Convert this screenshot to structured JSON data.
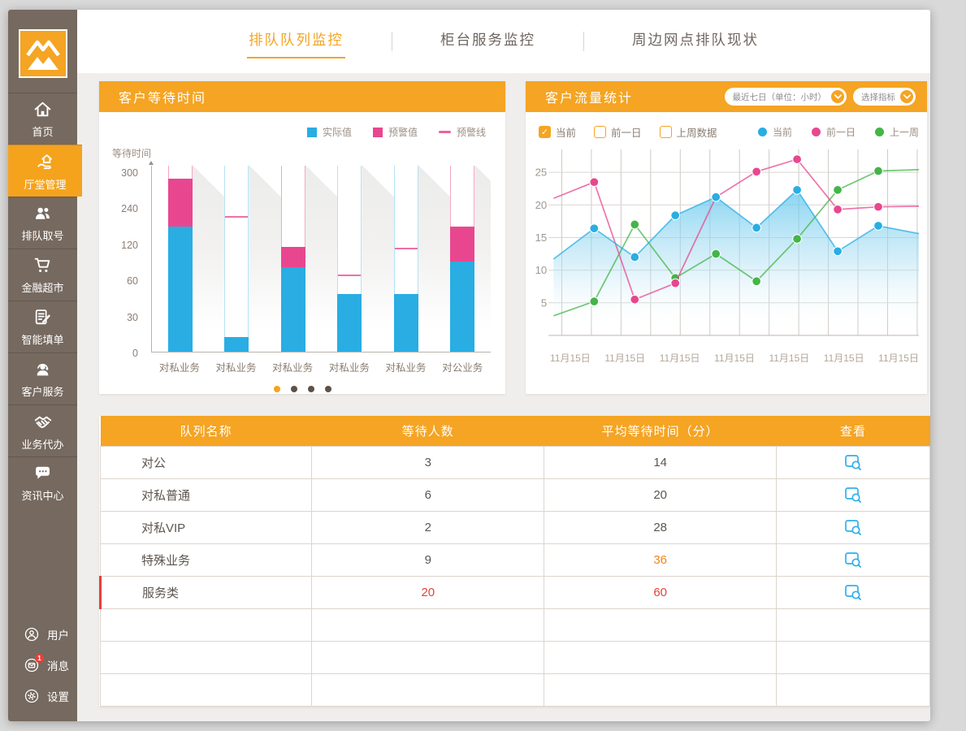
{
  "colors": {
    "accent_orange": "#F5A423",
    "sidebar_brown": "#76695F",
    "blue": "#29ADE3",
    "pink": "#E8478F",
    "green": "#44B549",
    "red": "#E6403A",
    "warn_orange": "#F08519"
  },
  "sidebar": {
    "items": [
      {
        "label": "首页",
        "active": false
      },
      {
        "label": "厅堂管理",
        "active": true
      },
      {
        "label": "排队取号",
        "active": false
      },
      {
        "label": "金融超市",
        "active": false
      },
      {
        "label": "智能填单",
        "active": false
      },
      {
        "label": "客户服务",
        "active": false
      },
      {
        "label": "业务代办",
        "active": false
      },
      {
        "label": "资讯中心",
        "active": false
      }
    ],
    "bottom": [
      {
        "label": "用户"
      },
      {
        "label": "消息",
        "badge": "1"
      },
      {
        "label": "设置"
      }
    ]
  },
  "topbar": {
    "tabs": [
      {
        "label": "排队队列监控",
        "active": true
      },
      {
        "label": "柜台服务监控",
        "active": false
      },
      {
        "label": "周边网点排队现状",
        "active": false
      }
    ]
  },
  "panels": {
    "wait": {
      "title": "客户等待时间",
      "axis_caption": "等待时间",
      "legend": [
        {
          "label": "实际值",
          "type": "square",
          "color": "#29ADE3"
        },
        {
          "label": "预警值",
          "type": "square",
          "color": "#E8478F"
        },
        {
          "label": "预警线",
          "type": "line",
          "color": "#F0609E"
        }
      ],
      "pagination": {
        "dots": 4,
        "active": 0
      }
    },
    "flow": {
      "title": "客户流量统计",
      "dropdowns": [
        "最近七日（单位：小时）",
        "选择指标"
      ],
      "checkboxes": [
        {
          "label": "当前",
          "checked": true
        },
        {
          "label": "前一日",
          "checked": false
        },
        {
          "label": "上周数据",
          "checked": false
        }
      ],
      "legend": [
        {
          "label": "当前",
          "color": "#29ADE3"
        },
        {
          "label": "前一日",
          "color": "#E8478F"
        },
        {
          "label": "上一周",
          "color": "#44B549"
        }
      ]
    }
  },
  "chart_data": [
    {
      "type": "bar",
      "title": "客户等待时间",
      "ylabel": "等待时间",
      "yticks": [
        0,
        30,
        60,
        120,
        240,
        300
      ],
      "bars": [
        {
          "label": "对私业务",
          "actual": 175,
          "warn_top": 288,
          "warn_line": null,
          "outline": "pink"
        },
        {
          "label": "对私业务",
          "actual": 12,
          "warn_top": null,
          "warn_line": 205,
          "outline": "blue"
        },
        {
          "label": "对私业务",
          "actual": 80,
          "warn_top": 115,
          "warn_line": null,
          "outline": "pink"
        },
        {
          "label": "对私业务",
          "actual": 48,
          "warn_top": null,
          "warn_line": 66,
          "outline": "blue"
        },
        {
          "label": "对私业务",
          "actual": 48,
          "warn_top": null,
          "warn_line": 110,
          "outline": "blue"
        },
        {
          "label": "对公业务",
          "actual": 90,
          "warn_top": 175,
          "warn_line": null,
          "outline": "pink"
        }
      ],
      "legend": [
        "实际值",
        "预警值",
        "预警线"
      ]
    },
    {
      "type": "line",
      "title": "客户流量统计",
      "yticks": [
        5,
        10,
        15,
        20,
        25
      ],
      "ylim": [
        0,
        29
      ],
      "x_labels": [
        "11月15日",
        "11月15日",
        "11月15日",
        "11月15日",
        "11月15日",
        "11月15日",
        "11月15日"
      ],
      "grid": true,
      "series": [
        {
          "name": "当前",
          "color": "#29ADE3",
          "area": true,
          "values": [
            11.7,
            16.4,
            12.0,
            18.4,
            21.2,
            16.5,
            22.3,
            12.9,
            16.8,
            15.6
          ]
        },
        {
          "name": "前一日",
          "color": "#E8478F",
          "area": false,
          "values": [
            21.0,
            23.5,
            5.5,
            8.0,
            21.2,
            25.1,
            27.0,
            19.3,
            19.7,
            19.8
          ]
        },
        {
          "name": "上一周",
          "color": "#44B549",
          "area": false,
          "values": [
            3.0,
            5.2,
            17.0,
            8.8,
            12.5,
            8.3,
            14.8,
            22.3,
            25.2,
            25.4
          ]
        }
      ]
    }
  ],
  "table": {
    "columns": [
      "队列名称",
      "等待人数",
      "平均等待时间（分）",
      "查看"
    ],
    "rows": [
      {
        "name": "对公",
        "waiting": "3",
        "avg": "14"
      },
      {
        "name": "对私普通",
        "waiting": "6",
        "avg": "20"
      },
      {
        "name": "对私VIP",
        "waiting": "2",
        "avg": "28"
      },
      {
        "name": "特殊业务",
        "waiting": "9",
        "avg": "36",
        "avg_color": "orange"
      },
      {
        "name": "服务类",
        "waiting": "20",
        "avg": "60",
        "waiting_color": "red",
        "avg_color": "red",
        "accent": true
      }
    ],
    "empty_rows": 3
  }
}
